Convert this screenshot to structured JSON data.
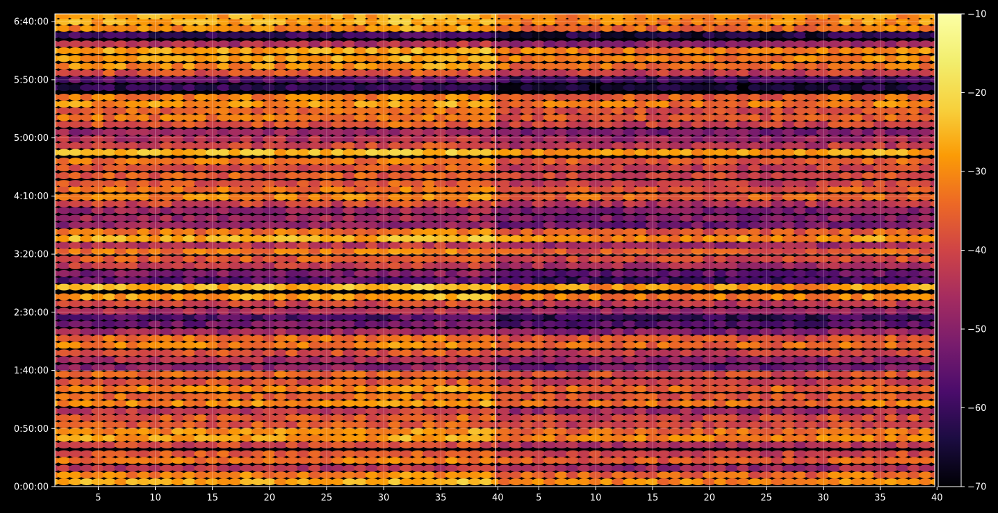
{
  "chart_data": {
    "type": "heatmap",
    "title": "",
    "xlabel": "",
    "ylabel": "",
    "panels": [
      {
        "name": "",
        "x_range": [
          1.2,
          39.8
        ],
        "x_ticks": [
          5,
          10,
          15,
          20,
          25,
          30,
          35,
          40
        ]
      },
      {
        "name": "",
        "x_range": [
          1.2,
          39.8
        ],
        "x_ticks": [
          5,
          10,
          15,
          20,
          25,
          30,
          35,
          40
        ]
      }
    ],
    "y_range_seconds": [
      0,
      24400
    ],
    "y_ticks": [
      {
        "seconds": 0,
        "label": "0:00:00"
      },
      {
        "seconds": 3000,
        "label": "0:50:00"
      },
      {
        "seconds": 6000,
        "label": "1:40:00"
      },
      {
        "seconds": 9000,
        "label": "2:30:00"
      },
      {
        "seconds": 12000,
        "label": "3:20:00"
      },
      {
        "seconds": 15000,
        "label": "4:10:00"
      },
      {
        "seconds": 18000,
        "label": "5:00:00"
      },
      {
        "seconds": 21000,
        "label": "5:50:00"
      },
      {
        "seconds": 24000,
        "label": "6:40:00"
      }
    ],
    "colorbar": {
      "colormap": "inferno",
      "range": [
        -70,
        -10
      ],
      "ticks": [
        -10,
        -20,
        -30,
        -40,
        -50,
        -60,
        -70
      ],
      "tick_labels": [
        "−10",
        "−20",
        "−30",
        "−40",
        "−50",
        "−60",
        "−70"
      ]
    },
    "grid": true,
    "bands": [
      {
        "y": 250,
        "level": -27
      },
      {
        "y": 600,
        "level": -31
      },
      {
        "y": 950,
        "level": -44
      },
      {
        "y": 1350,
        "level": -33
      },
      {
        "y": 1700,
        "level": -37
      },
      {
        "y": 2150,
        "level": -40
      },
      {
        "y": 2500,
        "level": -28
      },
      {
        "y": 2850,
        "level": -30
      },
      {
        "y": 3200,
        "level": -37
      },
      {
        "y": 3550,
        "level": -36
      },
      {
        "y": 3900,
        "level": -43
      },
      {
        "y": 4300,
        "level": -30
      },
      {
        "y": 4650,
        "level": -34
      },
      {
        "y": 5050,
        "level": -31
      },
      {
        "y": 5400,
        "level": -38
      },
      {
        "y": 5800,
        "level": -35
      },
      {
        "y": 6150,
        "level": -50
      },
      {
        "y": 6550,
        "level": -45
      },
      {
        "y": 6900,
        "level": -38
      },
      {
        "y": 7300,
        "level": -31
      },
      {
        "y": 7650,
        "level": -34
      },
      {
        "y": 8000,
        "level": -47
      },
      {
        "y": 8400,
        "level": -53
      },
      {
        "y": 8750,
        "level": -58
      },
      {
        "y": 9050,
        "level": -45
      },
      {
        "y": 9450,
        "level": -40
      },
      {
        "y": 9800,
        "level": -28
      },
      {
        "y": 10300,
        "level": -25
      },
      {
        "y": 10650,
        "level": -56
      },
      {
        "y": 11000,
        "level": -51
      },
      {
        "y": 11400,
        "level": -42
      },
      {
        "y": 11750,
        "level": -36
      },
      {
        "y": 12150,
        "level": -33
      },
      {
        "y": 12450,
        "level": -43
      },
      {
        "y": 12800,
        "level": -26
      },
      {
        "y": 13150,
        "level": -33
      },
      {
        "y": 13500,
        "level": -49
      },
      {
        "y": 13850,
        "level": -47
      },
      {
        "y": 14250,
        "level": -48
      },
      {
        "y": 14600,
        "level": -40
      },
      {
        "y": 14950,
        "level": -31
      },
      {
        "y": 15350,
        "level": -33
      },
      {
        "y": 15650,
        "level": -38
      },
      {
        "y": 16050,
        "level": -36
      },
      {
        "y": 16450,
        "level": -38
      },
      {
        "y": 16800,
        "level": -33
      },
      {
        "y": 17250,
        "level": -25
      },
      {
        "y": 17600,
        "level": -40
      },
      {
        "y": 17950,
        "level": -44
      },
      {
        "y": 18300,
        "level": -48
      },
      {
        "y": 18700,
        "level": -37
      },
      {
        "y": 19050,
        "level": -33
      },
      {
        "y": 19400,
        "level": -35
      },
      {
        "y": 19750,
        "level": -29
      },
      {
        "y": 20100,
        "level": -32
      },
      {
        "y": 20600,
        "level": -62
      },
      {
        "y": 21000,
        "level": -56
      },
      {
        "y": 21350,
        "level": -38
      },
      {
        "y": 21700,
        "level": -30
      },
      {
        "y": 22100,
        "level": -28
      },
      {
        "y": 22500,
        "level": -28
      },
      {
        "y": 22850,
        "level": -45
      },
      {
        "y": 23300,
        "level": -60
      },
      {
        "y": 23650,
        "level": -30
      },
      {
        "y": 24000,
        "level": -27
      },
      {
        "y": 24300,
        "level": -27
      }
    ]
  }
}
